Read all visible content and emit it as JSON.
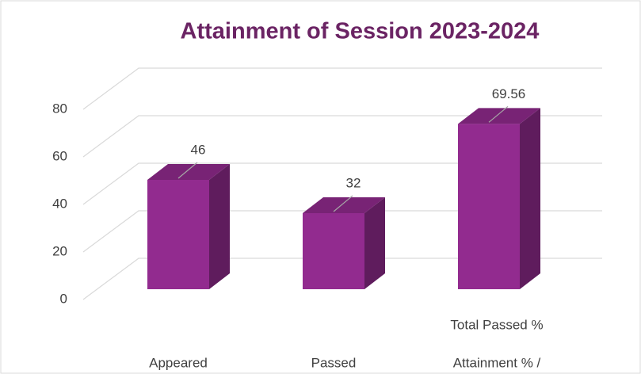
{
  "chart_data": {
    "type": "bar3d",
    "title": "Attainment of Session 2023-2024",
    "categories": [
      "Appeared",
      "Passed",
      [
        "Attainment % /",
        "Total Passed %"
      ]
    ],
    "values": [
      46,
      32,
      69.56
    ],
    "color": "#922b8f",
    "ylim": [
      0,
      80
    ],
    "yticks": [
      0,
      20,
      40,
      60,
      80
    ],
    "grid": true
  }
}
